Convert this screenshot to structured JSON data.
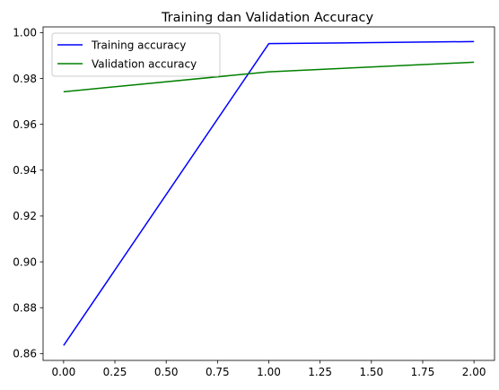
{
  "chart_data": {
    "type": "line",
    "title": "Training dan Validation Accuracy",
    "xlabel": "",
    "ylabel": "",
    "x": [
      0,
      1,
      2
    ],
    "series": [
      {
        "name": "Training accuracy",
        "color": "#0000ff",
        "values": [
          0.8635,
          0.9952,
          0.9961
        ]
      },
      {
        "name": "Validation accuracy",
        "color": "#008000",
        "values": [
          0.9742,
          0.9829,
          0.9871
        ]
      }
    ],
    "xlim": [
      -0.1,
      2.1
    ],
    "ylim": [
      0.857,
      1.0025
    ],
    "xticks": [
      0.0,
      0.25,
      0.5,
      0.75,
      1.0,
      1.25,
      1.5,
      1.75,
      2.0
    ],
    "xtick_labels": [
      "0.00",
      "0.25",
      "0.50",
      "0.75",
      "1.00",
      "1.25",
      "1.50",
      "1.75",
      "2.00"
    ],
    "yticks": [
      0.86,
      0.88,
      0.9,
      0.92,
      0.94,
      0.96,
      0.98,
      1.0
    ],
    "ytick_labels": [
      "0.86",
      "0.88",
      "0.90",
      "0.92",
      "0.94",
      "0.96",
      "0.98",
      "1.00"
    ],
    "grid": false,
    "legend_position": "upper-left"
  }
}
